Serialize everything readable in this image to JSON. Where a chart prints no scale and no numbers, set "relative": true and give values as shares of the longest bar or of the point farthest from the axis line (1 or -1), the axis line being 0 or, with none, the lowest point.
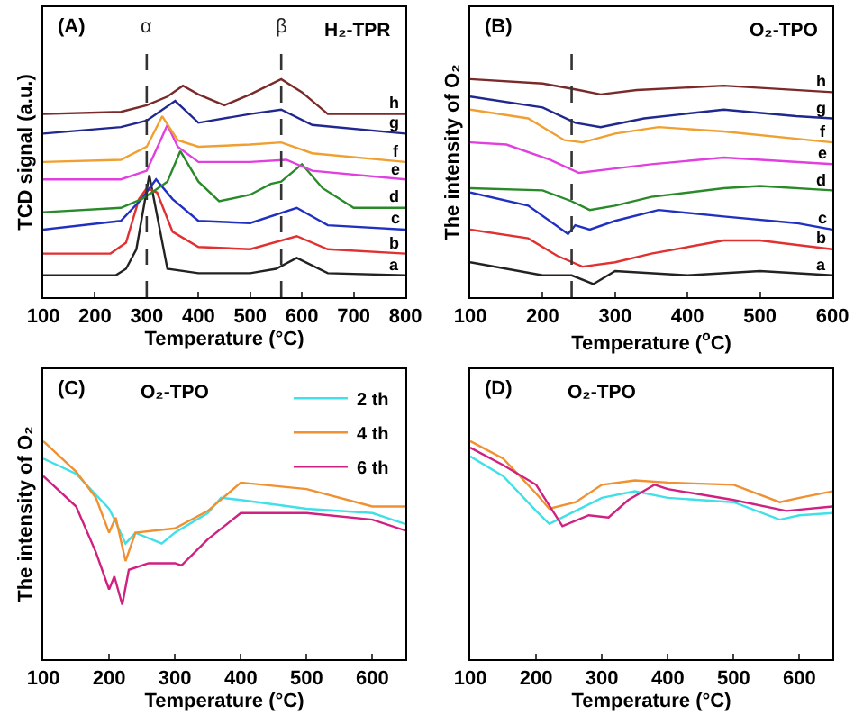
{
  "chart_data": [
    {
      "type": "line",
      "relative": true,
      "xlabel": "Temperature (°C)",
      "ylabel": "TCD signal (a.u.)",
      "xlim": [
        100,
        800
      ],
      "xticks": [
        100,
        200,
        300,
        400,
        500,
        600,
        700,
        800
      ],
      "tick_labels": "x",
      "grid": false,
      "legend": false,
      "annotations": [
        "(A)",
        "H₂-TPR"
      ],
      "ref_lines": [
        {
          "axis": "x",
          "value": 300,
          "label": "α",
          "line_style": "dashed",
          "color": "#333333"
        },
        {
          "axis": "x",
          "value": 560,
          "label": "β",
          "line_style": "dashed",
          "color": "#333333"
        }
      ],
      "series": [
        {
          "name": "a",
          "color": "#222222",
          "x": [
            100,
            240,
            260,
            280,
            305,
            340,
            400,
            500,
            550,
            590,
            650,
            800
          ],
          "values": [
            0.1,
            0.1,
            0.13,
            0.22,
            0.56,
            0.13,
            0.11,
            0.11,
            0.13,
            0.18,
            0.11,
            0.1
          ]
        },
        {
          "name": "b",
          "color": "#e03030",
          "x": [
            100,
            230,
            260,
            285,
            300,
            320,
            350,
            400,
            500,
            590,
            650,
            800
          ],
          "values": [
            0.2,
            0.2,
            0.25,
            0.45,
            0.5,
            0.48,
            0.3,
            0.23,
            0.22,
            0.28,
            0.22,
            0.2
          ]
        },
        {
          "name": "c",
          "color": "#2030c0",
          "x": [
            100,
            250,
            290,
            318,
            350,
            400,
            500,
            590,
            650,
            800
          ],
          "values": [
            0.31,
            0.35,
            0.45,
            0.54,
            0.45,
            0.35,
            0.34,
            0.41,
            0.33,
            0.31
          ]
        },
        {
          "name": "d",
          "color": "#2a8a2a",
          "x": [
            100,
            250,
            290,
            310,
            340,
            365,
            400,
            440,
            500,
            540,
            560,
            600,
            640,
            700,
            800
          ],
          "values": [
            0.39,
            0.41,
            0.45,
            0.48,
            0.53,
            0.67,
            0.53,
            0.44,
            0.47,
            0.52,
            0.53,
            0.61,
            0.5,
            0.41,
            0.41
          ]
        },
        {
          "name": "e",
          "color": "#e040e0",
          "x": [
            100,
            250,
            300,
            325,
            340,
            360,
            400,
            500,
            570,
            620,
            800
          ],
          "values": [
            0.54,
            0.54,
            0.58,
            0.71,
            0.79,
            0.69,
            0.62,
            0.62,
            0.63,
            0.58,
            0.54
          ]
        },
        {
          "name": "f",
          "color": "#f0a030",
          "x": [
            100,
            250,
            300,
            330,
            360,
            400,
            500,
            560,
            620,
            800
          ],
          "values": [
            0.62,
            0.63,
            0.69,
            0.83,
            0.72,
            0.69,
            0.7,
            0.71,
            0.66,
            0.62
          ]
        },
        {
          "name": "g",
          "color": "#202890",
          "x": [
            100,
            250,
            300,
            355,
            400,
            500,
            560,
            620,
            800
          ],
          "values": [
            0.75,
            0.78,
            0.81,
            0.9,
            0.8,
            0.84,
            0.86,
            0.79,
            0.75
          ]
        },
        {
          "name": "h",
          "color": "#7a2a2a",
          "x": [
            100,
            250,
            300,
            340,
            370,
            400,
            450,
            500,
            560,
            600,
            650,
            800
          ],
          "values": [
            0.84,
            0.85,
            0.88,
            0.92,
            0.97,
            0.93,
            0.88,
            0.93,
            1.0,
            0.94,
            0.84,
            0.84
          ]
        }
      ]
    },
    {
      "type": "line",
      "relative": true,
      "xlabel": "Temperature ($^{o}$C)",
      "ylabel": "The intensity of O₂",
      "xlim": [
        100,
        600
      ],
      "xticks": [
        100,
        200,
        300,
        400,
        500,
        600
      ],
      "tick_labels": "x",
      "grid": false,
      "legend": false,
      "annotations": [
        "(B)",
        "O₂-TPO"
      ],
      "ref_lines": [
        {
          "axis": "x",
          "value": 240,
          "line_style": "dashed",
          "color": "#333333"
        }
      ],
      "series": [
        {
          "name": "a",
          "color": "#222222",
          "x": [
            100,
            200,
            240,
            270,
            300,
            400,
            500,
            600
          ],
          "values": [
            0.16,
            0.1,
            0.1,
            0.06,
            0.12,
            0.1,
            0.12,
            0.1
          ]
        },
        {
          "name": "b",
          "color": "#e03030",
          "x": [
            100,
            180,
            220,
            255,
            300,
            350,
            450,
            500,
            600
          ],
          "values": [
            0.31,
            0.27,
            0.19,
            0.14,
            0.16,
            0.2,
            0.26,
            0.26,
            0.22
          ]
        },
        {
          "name": "c",
          "color": "#2030c0",
          "x": [
            100,
            180,
            235,
            245,
            265,
            300,
            360,
            450,
            550,
            600
          ],
          "values": [
            0.48,
            0.42,
            0.29,
            0.33,
            0.31,
            0.35,
            0.4,
            0.37,
            0.34,
            0.31
          ]
        },
        {
          "name": "d",
          "color": "#2a8a2a",
          "x": [
            100,
            200,
            240,
            265,
            300,
            350,
            450,
            500,
            600
          ],
          "values": [
            0.5,
            0.49,
            0.44,
            0.4,
            0.42,
            0.46,
            0.5,
            0.51,
            0.49
          ]
        },
        {
          "name": "e",
          "color": "#e040e0",
          "x": [
            100,
            150,
            210,
            250,
            300,
            350,
            450,
            600
          ],
          "values": [
            0.71,
            0.7,
            0.63,
            0.57,
            0.59,
            0.61,
            0.64,
            0.61
          ]
        },
        {
          "name": "f",
          "color": "#f0a030",
          "x": [
            100,
            180,
            230,
            255,
            300,
            360,
            450,
            600
          ],
          "values": [
            0.86,
            0.82,
            0.72,
            0.71,
            0.75,
            0.78,
            0.76,
            0.71
          ]
        },
        {
          "name": "g",
          "color": "#202890",
          "x": [
            100,
            200,
            245,
            280,
            340,
            450,
            550,
            600
          ],
          "values": [
            0.92,
            0.87,
            0.8,
            0.78,
            0.82,
            0.86,
            0.83,
            0.82
          ]
        },
        {
          "name": "h",
          "color": "#7a2a2a",
          "x": [
            100,
            200,
            250,
            280,
            330,
            450,
            600
          ],
          "values": [
            1.0,
            0.98,
            0.95,
            0.93,
            0.95,
            0.97,
            0.94
          ]
        }
      ]
    },
    {
      "type": "line",
      "relative": true,
      "xlabel": "Temperature (°C)",
      "ylabel": "The intensity of O₂",
      "xlim": [
        100,
        650
      ],
      "xticks": [
        100,
        200,
        300,
        400,
        500,
        600
      ],
      "tick_labels": "x",
      "grid": false,
      "legend": "top right",
      "annotations": [
        "(C)",
        "O₂-TPO"
      ],
      "series": [
        {
          "name": "2 th",
          "color": "#40e0e8",
          "x": [
            100,
            150,
            200,
            210,
            225,
            240,
            280,
            300,
            350,
            370,
            400,
            500,
            600,
            650
          ],
          "values": [
            0.92,
            0.85,
            0.69,
            0.63,
            0.53,
            0.58,
            0.53,
            0.58,
            0.67,
            0.74,
            0.73,
            0.69,
            0.67,
            0.62
          ]
        },
        {
          "name": "4 th",
          "color": "#f09030",
          "x": [
            100,
            150,
            180,
            200,
            210,
            225,
            240,
            300,
            350,
            400,
            500,
            600,
            650
          ],
          "values": [
            1.0,
            0.86,
            0.74,
            0.58,
            0.65,
            0.45,
            0.58,
            0.6,
            0.68,
            0.81,
            0.78,
            0.7,
            0.7
          ]
        },
        {
          "name": "6 th",
          "color": "#d02080",
          "x": [
            100,
            150,
            180,
            200,
            208,
            220,
            230,
            260,
            300,
            310,
            350,
            400,
            500,
            600,
            650
          ],
          "values": [
            0.84,
            0.7,
            0.49,
            0.32,
            0.38,
            0.25,
            0.41,
            0.44,
            0.44,
            0.43,
            0.55,
            0.67,
            0.67,
            0.64,
            0.59
          ]
        }
      ]
    },
    {
      "type": "line",
      "relative": true,
      "xlabel": "Temperature (°C)",
      "xlim": [
        100,
        650
      ],
      "xticks": [
        100,
        200,
        300,
        400,
        500,
        600
      ],
      "tick_labels": "x",
      "grid": false,
      "legend": false,
      "annotations": [
        "(D)",
        "O₂-TPO"
      ],
      "series": [
        {
          "color": "#40e0e8",
          "x": [
            100,
            150,
            200,
            220,
            260,
            300,
            350,
            400,
            500,
            570,
            600,
            650
          ],
          "values": [
            0.93,
            0.84,
            0.68,
            0.62,
            0.68,
            0.74,
            0.77,
            0.74,
            0.72,
            0.64,
            0.66,
            0.67
          ]
        },
        {
          "color": "#f09030",
          "x": [
            100,
            150,
            200,
            220,
            260,
            300,
            350,
            400,
            500,
            570,
            600,
            650
          ],
          "values": [
            1.0,
            0.92,
            0.76,
            0.69,
            0.72,
            0.8,
            0.82,
            0.81,
            0.8,
            0.72,
            0.74,
            0.77
          ]
        },
        {
          "color": "#d02080",
          "x": [
            100,
            150,
            200,
            240,
            280,
            310,
            340,
            380,
            400,
            500,
            580,
            650
          ],
          "values": [
            0.97,
            0.89,
            0.8,
            0.61,
            0.66,
            0.65,
            0.73,
            0.8,
            0.78,
            0.73,
            0.68,
            0.7
          ]
        }
      ]
    }
  ]
}
